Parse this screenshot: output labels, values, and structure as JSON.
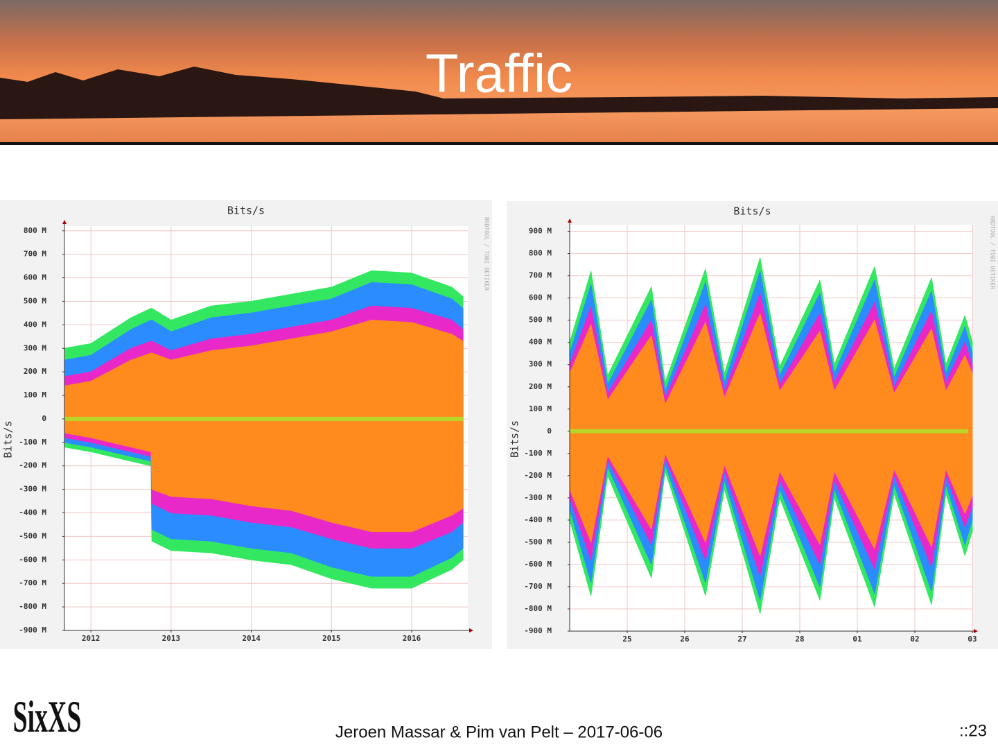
{
  "header": {
    "title": "Traffic"
  },
  "chart_data": [
    {
      "type": "area",
      "title": "Bits/s",
      "y_label": "Bits/s",
      "watermark": "RRDTOOL / TOBI OETIKER",
      "grid": true,
      "x": [
        2011.67,
        2012.0,
        2012.5,
        2012.75,
        2012.76,
        2013.0,
        2013.5,
        2014.0,
        2014.5,
        2015.0,
        2015.5,
        2016.0,
        2016.5,
        2016.64
      ],
      "xlim": [
        2011.67,
        2016.7
      ],
      "xticks": [
        2012,
        2013,
        2014,
        2015,
        2016
      ],
      "ylim": [
        -900000000,
        820000000
      ],
      "yticks": [
        {
          "value": -900000000,
          "label": "-900 M"
        },
        {
          "value": -800000000,
          "label": "-800 M"
        },
        {
          "value": -700000000,
          "label": "-700 M"
        },
        {
          "value": -600000000,
          "label": "-600 M"
        },
        {
          "value": -500000000,
          "label": "-500 M"
        },
        {
          "value": -400000000,
          "label": "-400 M"
        },
        {
          "value": -300000000,
          "label": "-300 M"
        },
        {
          "value": -200000000,
          "label": "-200 M"
        },
        {
          "value": -100000000,
          "label": "-100 M"
        },
        0,
        {
          "value": 100000000,
          "label": "100 M"
        },
        {
          "value": 200000000,
          "label": "200 M"
        },
        {
          "value": 300000000,
          "label": "300 M"
        },
        {
          "value": 400000000,
          "label": "400 M"
        },
        {
          "value": 500000000,
          "label": "500 M"
        },
        {
          "value": 600000000,
          "label": "600 M"
        },
        {
          "value": 700000000,
          "label": "700 M"
        },
        {
          "value": 800000000,
          "label": "800 M"
        }
      ],
      "series": [
        {
          "color": "#33e860",
          "values": [
            300000000.0,
            320000000.0,
            430000000.0,
            470000000.0,
            470000000.0,
            420000000.0,
            480000000.0,
            500000000.0,
            530000000.0,
            560000000.0,
            630000000.0,
            620000000.0,
            560000000.0,
            520000000.0
          ],
          "lower": [
            -120000000.0,
            -140000000.0,
            -180000000.0,
            -200000000.0,
            -520000000.0,
            -560000000.0,
            -570000000.0,
            -600000000.0,
            -620000000.0,
            -680000000.0,
            -720000000.0,
            -720000000.0,
            -640000000.0,
            -600000000.0
          ]
        },
        {
          "color": "#2a8cff",
          "values": [
            250000000.0,
            270000000.0,
            380000000.0,
            420000000.0,
            420000000.0,
            370000000.0,
            430000000.0,
            450000000.0,
            480000000.0,
            510000000.0,
            580000000.0,
            570000000.0,
            510000000.0,
            470000000.0
          ],
          "lower": [
            -100000000.0,
            -120000000.0,
            -160000000.0,
            -180000000.0,
            -470000000.0,
            -510000000.0,
            -520000000.0,
            -550000000.0,
            -570000000.0,
            -630000000.0,
            -670000000.0,
            -670000000.0,
            -590000000.0,
            -550000000.0
          ]
        },
        {
          "color": "#e828c8",
          "values": [
            180000000.0,
            200000000.0,
            300000000.0,
            330000000.0,
            330000000.0,
            290000000.0,
            340000000.0,
            360000000.0,
            390000000.0,
            420000000.0,
            480000000.0,
            470000000.0,
            420000000.0,
            380000000.0
          ],
          "lower": [
            -80000000.0,
            -100000000.0,
            -140000000.0,
            -160000000.0,
            -360000000.0,
            -400000000.0,
            -410000000.0,
            -440000000.0,
            -460000000.0,
            -510000000.0,
            -550000000.0,
            -550000000.0,
            -480000000.0,
            -440000000.0
          ]
        },
        {
          "color": "#ff8a1e",
          "values": [
            140000000.0,
            160000000.0,
            250000000.0,
            280000000.0,
            280000000.0,
            250000000.0,
            290000000.0,
            310000000.0,
            340000000.0,
            370000000.0,
            420000000.0,
            410000000.0,
            360000000.0,
            330000000.0
          ],
          "lower": [
            -60000000.0,
            -80000000.0,
            -120000000.0,
            -140000000.0,
            -300000000.0,
            -330000000.0,
            -340000000.0,
            -370000000.0,
            -390000000.0,
            -440000000.0,
            -480000000.0,
            -480000000.0,
            -410000000.0,
            -380000000.0
          ]
        }
      ]
    },
    {
      "type": "area",
      "title": "Bits/s",
      "y_label": "Bits/s",
      "watermark": "RRDTOOL / TOBI OETIKER",
      "grid": true,
      "x": [
        -1,
        -0.63,
        -0.34,
        0.42,
        0.66,
        1.36,
        1.69,
        2.31,
        2.65,
        3.35,
        3.6,
        4.3,
        4.64,
        5.29,
        5.54,
        5.87,
        6
      ],
      "xlim": [
        -1,
        6
      ],
      "xticks": [
        {
          "value": 0,
          "label": "25"
        },
        {
          "value": 1,
          "label": "26"
        },
        {
          "value": 2,
          "label": "27"
        },
        {
          "value": 3,
          "label": "28"
        },
        {
          "value": 4,
          "label": "01"
        },
        {
          "value": 5,
          "label": "02"
        },
        {
          "value": 6,
          "label": "03"
        }
      ],
      "ylim": [
        -900000000,
        930000000
      ],
      "yticks": [
        {
          "value": -900000000,
          "label": "-900 M"
        },
        {
          "value": -800000000,
          "label": "-800 M"
        },
        {
          "value": -700000000,
          "label": "-700 M"
        },
        {
          "value": -600000000,
          "label": "-600 M"
        },
        {
          "value": -500000000,
          "label": "-500 M"
        },
        {
          "value": -400000000,
          "label": "-400 M"
        },
        {
          "value": -300000000,
          "label": "-300 M"
        },
        {
          "value": -200000000,
          "label": "-200 M"
        },
        {
          "value": -100000000,
          "label": "-100 M"
        },
        0,
        {
          "value": 100000000,
          "label": "100 M"
        },
        {
          "value": 200000000,
          "label": "200 M"
        },
        {
          "value": 300000000,
          "label": "300 M"
        },
        {
          "value": 400000000,
          "label": "400 M"
        },
        {
          "value": 500000000,
          "label": "500 M"
        },
        {
          "value": 600000000,
          "label": "600 M"
        },
        {
          "value": 700000000,
          "label": "700 M"
        },
        {
          "value": 800000000,
          "label": "800 M"
        },
        {
          "value": 900000000,
          "label": "900 M"
        }
      ],
      "series": [
        {
          "color": "#33e860",
          "values": [
            400000000.0,
            720000000.0,
            250000000.0,
            650000000.0,
            220000000.0,
            730000000.0,
            260000000.0,
            780000000.0,
            290000000.0,
            680000000.0,
            300000000.0,
            740000000.0,
            280000000.0,
            690000000.0,
            300000000.0,
            520000000.0,
            400000000.0
          ],
          "lower": [
            -400000000.0,
            -740000000.0,
            -200000000.0,
            -660000000.0,
            -180000000.0,
            -740000000.0,
            -260000000.0,
            -820000000.0,
            -300000000.0,
            -760000000.0,
            -300000000.0,
            -790000000.0,
            -280000000.0,
            -780000000.0,
            -280000000.0,
            -560000000.0,
            -450000000.0
          ]
        },
        {
          "color": "#2a8cff",
          "values": [
            350000000.0,
            660000000.0,
            210000000.0,
            590000000.0,
            180000000.0,
            670000000.0,
            220000000.0,
            720000000.0,
            250000000.0,
            620000000.0,
            260000000.0,
            680000000.0,
            240000000.0,
            630000000.0,
            260000000.0,
            470000000.0,
            350000000.0
          ],
          "lower": [
            -350000000.0,
            -680000000.0,
            -160000000.0,
            -600000000.0,
            -150000000.0,
            -680000000.0,
            -220000000.0,
            -760000000.0,
            -260000000.0,
            -700000000.0,
            -260000000.0,
            -730000000.0,
            -240000000.0,
            -720000000.0,
            -240000000.0,
            -510000000.0,
            -400000000.0
          ]
        },
        {
          "color": "#e828c8",
          "values": [
            300000000.0,
            560000000.0,
            170000000.0,
            500000000.0,
            150000000.0,
            570000000.0,
            180000000.0,
            620000000.0,
            210000000.0,
            530000000.0,
            220000000.0,
            580000000.0,
            200000000.0,
            540000000.0,
            220000000.0,
            400000000.0,
            300000000.0
          ],
          "lower": [
            -300000000.0,
            -580000000.0,
            -130000000.0,
            -510000000.0,
            -120000000.0,
            -580000000.0,
            -180000000.0,
            -650000000.0,
            -220000000.0,
            -600000000.0,
            -220000000.0,
            -620000000.0,
            -200000000.0,
            -610000000.0,
            -200000000.0,
            -430000000.0,
            -340000000.0
          ]
        },
        {
          "color": "#ff8a1e",
          "values": [
            260000000.0,
            480000000.0,
            140000000.0,
            430000000.0,
            120000000.0,
            490000000.0,
            150000000.0,
            530000000.0,
            180000000.0,
            450000000.0,
            180000000.0,
            500000000.0,
            170000000.0,
            460000000.0,
            180000000.0,
            340000000.0,
            260000000.0
          ],
          "lower": [
            -260000000.0,
            -500000000.0,
            -110000000.0,
            -440000000.0,
            -100000000.0,
            -500000000.0,
            -150000000.0,
            -560000000.0,
            -180000000.0,
            -510000000.0,
            -180000000.0,
            -530000000.0,
            -170000000.0,
            -520000000.0,
            -170000000.0,
            -370000000.0,
            -290000000.0
          ]
        }
      ]
    }
  ],
  "footer": {
    "logo": "SixXS",
    "text": "Jeroen Massar & Pim van Pelt – 2017-06-06",
    "page": "::23"
  }
}
